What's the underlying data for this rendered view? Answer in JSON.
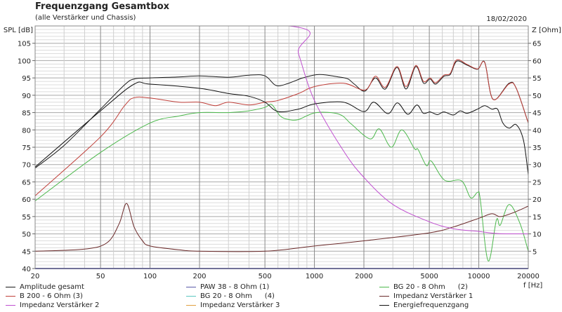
{
  "header": {
    "title": "Frequenzgang Gesamtbox",
    "subtitle": "(alle Verstärker und Chassis)",
    "date": "18/02/2020"
  },
  "chart_data": {
    "type": "line",
    "title": "Frequenzgang Gesamtbox",
    "xlabel": "f [Hz]",
    "ylabel": "SPL [dB]",
    "y2label": "Z [Ohm]",
    "xscale": "log",
    "xlim": [
      20,
      20000
    ],
    "ylim": [
      40,
      110
    ],
    "y2lim": [
      0,
      70
    ],
    "xticks": [
      20,
      50,
      100,
      200,
      500,
      1000,
      2000,
      5000,
      10000,
      20000
    ],
    "yticks": [
      40,
      45,
      50,
      55,
      60,
      65,
      70,
      75,
      80,
      85,
      90,
      95,
      100,
      105
    ],
    "y2ticks": [
      5,
      10,
      15,
      20,
      25,
      30,
      35,
      40,
      45,
      50,
      55,
      60,
      65
    ],
    "grid": true,
    "series": [
      {
        "name": "Amplitude gesamt",
        "color": "#1a1a1a",
        "axis": "left",
        "points": [
          [
            20,
            69
          ],
          [
            30,
            75.5
          ],
          [
            50,
            86
          ],
          [
            70,
            93
          ],
          [
            80,
            94.7
          ],
          [
            100,
            95
          ],
          [
            150,
            95.3
          ],
          [
            200,
            95.6
          ],
          [
            300,
            95.2
          ],
          [
            400,
            95.8
          ],
          [
            500,
            95.6
          ],
          [
            585,
            92.8
          ],
          [
            700,
            93.5
          ],
          [
            850,
            95
          ],
          [
            1070,
            96
          ],
          [
            1400,
            95.3
          ],
          [
            1600,
            94.7
          ],
          [
            1750,
            93.2
          ],
          [
            2030,
            91.2
          ],
          [
            2350,
            95
          ],
          [
            2700,
            91.8
          ],
          [
            3180,
            98
          ],
          [
            3610,
            91.8
          ],
          [
            4140,
            98.3
          ],
          [
            4610,
            93.5
          ],
          [
            5050,
            94.7
          ],
          [
            5460,
            93.2
          ],
          [
            6140,
            95.5
          ],
          [
            6700,
            96
          ],
          [
            7330,
            99.8
          ],
          [
            8490,
            98.7
          ],
          [
            9840,
            97.5
          ],
          [
            10870,
            99.5
          ],
          [
            12220,
            88.8
          ],
          [
            15300,
            93.5
          ],
          [
            16900,
            92
          ],
          [
            20000,
            82
          ]
        ]
      },
      {
        "name": "PAW 38 - 8 Ohm (1)",
        "color": "#5a5aa8",
        "axis": "left",
        "points": [
          [
            20,
            40
          ],
          [
            20000,
            40
          ]
        ]
      },
      {
        "name": "BG 20 - 8 Ohm (2)",
        "color": "#4cb84c",
        "axis": "left",
        "points": [
          [
            20,
            59.5
          ],
          [
            50,
            73.5
          ],
          [
            100,
            82
          ],
          [
            150,
            84
          ],
          [
            200,
            85
          ],
          [
            300,
            85
          ],
          [
            400,
            85.5
          ],
          [
            500,
            86.5
          ],
          [
            550,
            87.3
          ],
          [
            620,
            84
          ],
          [
            700,
            83
          ],
          [
            800,
            83
          ],
          [
            1024,
            85
          ],
          [
            1416,
            84.5
          ],
          [
            1676,
            81.7
          ],
          [
            2180,
            77.4
          ],
          [
            2483,
            80.3
          ],
          [
            2937,
            75
          ],
          [
            3404,
            80
          ],
          [
            4063,
            74.6
          ],
          [
            4266,
            74.4
          ],
          [
            4798,
            69.7
          ],
          [
            5141,
            71
          ],
          [
            6196,
            65.5
          ],
          [
            7852,
            65.3
          ],
          [
            8925,
            60.4
          ],
          [
            9844,
            62
          ],
          [
            10200,
            60
          ],
          [
            11400,
            42.2
          ],
          [
            12800,
            54
          ],
          [
            13500,
            52.5
          ],
          [
            15300,
            58.5
          ],
          [
            17800,
            53
          ],
          [
            20000,
            45
          ]
        ]
      },
      {
        "name": "B 200 - 6 Ohm (3)",
        "color": "#c0403a",
        "axis": "left",
        "points": [
          [
            20,
            61
          ],
          [
            50,
            78
          ],
          [
            70,
            87
          ],
          [
            80,
            89.3
          ],
          [
            100,
            89.2
          ],
          [
            150,
            88
          ],
          [
            200,
            88
          ],
          [
            250,
            87
          ],
          [
            300,
            88
          ],
          [
            400,
            87.2
          ],
          [
            500,
            88
          ],
          [
            600,
            88.5
          ],
          [
            800,
            90.5
          ],
          [
            1000,
            92.5
          ],
          [
            1500,
            93.5
          ],
          [
            2030,
            91.5
          ],
          [
            2350,
            95.5
          ],
          [
            2700,
            92.3
          ],
          [
            3180,
            98.3
          ],
          [
            3610,
            92.5
          ],
          [
            4140,
            98.6
          ],
          [
            4610,
            94
          ],
          [
            5050,
            95
          ],
          [
            5460,
            93.6
          ],
          [
            6140,
            95.8
          ],
          [
            6700,
            96.3
          ],
          [
            7330,
            100.2
          ],
          [
            8490,
            98.9
          ],
          [
            9840,
            97.6
          ],
          [
            10870,
            99.4
          ],
          [
            12220,
            88.8
          ],
          [
            15300,
            93.3
          ],
          [
            16900,
            92
          ],
          [
            20000,
            82
          ]
        ]
      },
      {
        "name": "BG 20 - 8 Ohm (4)",
        "color": "#5cc8c0",
        "axis": "left",
        "points": []
      },
      {
        "name": "Impedanz Verstärker 1",
        "color": "#6b2a2a",
        "axis": "right",
        "points": [
          [
            20,
            5
          ],
          [
            40,
            5.6
          ],
          [
            55,
            7.5
          ],
          [
            65,
            13
          ],
          [
            72,
            18.8
          ],
          [
            80,
            12
          ],
          [
            90,
            8
          ],
          [
            100,
            6.5
          ],
          [
            150,
            5.4
          ],
          [
            200,
            5
          ],
          [
            500,
            5
          ],
          [
            1000,
            6.5
          ],
          [
            2000,
            8
          ],
          [
            5000,
            10.3
          ],
          [
            7000,
            12
          ],
          [
            10000,
            14.5
          ],
          [
            12000,
            15.8
          ],
          [
            13500,
            15
          ],
          [
            16000,
            16
          ],
          [
            20000,
            18
          ]
        ]
      },
      {
        "name": "Impedanz Verstärker 2",
        "color": "#c050d0",
        "axis": "right",
        "points": [
          [
            20,
            70
          ],
          [
            700,
            70
          ],
          [
            800,
            62
          ],
          [
            1000,
            48.5
          ],
          [
            1500,
            34
          ],
          [
            2000,
            26.3
          ],
          [
            3000,
            18.5
          ],
          [
            5000,
            13.5
          ],
          [
            7000,
            11.5
          ],
          [
            10000,
            10.7
          ],
          [
            13000,
            10.1
          ],
          [
            20000,
            10
          ]
        ]
      },
      {
        "name": "Impedanz Verstärker 3",
        "color": "#e0a040",
        "axis": "right",
        "points": [
          [
            700,
            70
          ],
          [
            20000,
            70
          ]
        ]
      },
      {
        "name": "Energiefrequenzgang",
        "color": "#111111",
        "axis": "left",
        "points": [
          [
            20,
            69.3
          ],
          [
            50,
            85.5
          ],
          [
            80,
            93.2
          ],
          [
            100,
            93.2
          ],
          [
            200,
            92
          ],
          [
            300,
            90.5
          ],
          [
            400,
            89.7
          ],
          [
            500,
            88
          ],
          [
            600,
            85.3
          ],
          [
            800,
            86
          ],
          [
            1000,
            87.5
          ],
          [
            1500,
            88
          ],
          [
            2000,
            85.3
          ],
          [
            2300,
            88
          ],
          [
            2800,
            84.7
          ],
          [
            3200,
            87.8
          ],
          [
            3700,
            84.5
          ],
          [
            4200,
            87.2
          ],
          [
            4600,
            84.8
          ],
          [
            5050,
            85.2
          ],
          [
            5600,
            84.4
          ],
          [
            6140,
            85.2
          ],
          [
            7000,
            84.3
          ],
          [
            7700,
            85.5
          ],
          [
            8500,
            84.8
          ],
          [
            9840,
            86
          ],
          [
            10870,
            87
          ],
          [
            12000,
            86
          ],
          [
            13000,
            86
          ],
          [
            14000,
            82
          ],
          [
            15300,
            80.5
          ],
          [
            16900,
            81.5
          ],
          [
            18700,
            77
          ],
          [
            20000,
            67
          ]
        ]
      }
    ]
  },
  "legend": [
    {
      "label": "Amplitude gesamt",
      "num": ""
    },
    {
      "label": "PAW 38 - 8 Ohm (1)",
      "num": ""
    },
    {
      "label": "BG 20 - 8 Ohm",
      "num": "(2)"
    },
    {
      "label": "B 200 - 6 Ohm (3)",
      "num": ""
    },
    {
      "label": "BG 20 - 8 Ohm",
      "num": "(4)"
    },
    {
      "label": "Impedanz Verstärker 1",
      "num": ""
    },
    {
      "label": "Impedanz Verstärker 2",
      "num": ""
    },
    {
      "label": "Impedanz Verstärker 3",
      "num": ""
    },
    {
      "label": "Energiefrequenzgang",
      "num": ""
    }
  ]
}
